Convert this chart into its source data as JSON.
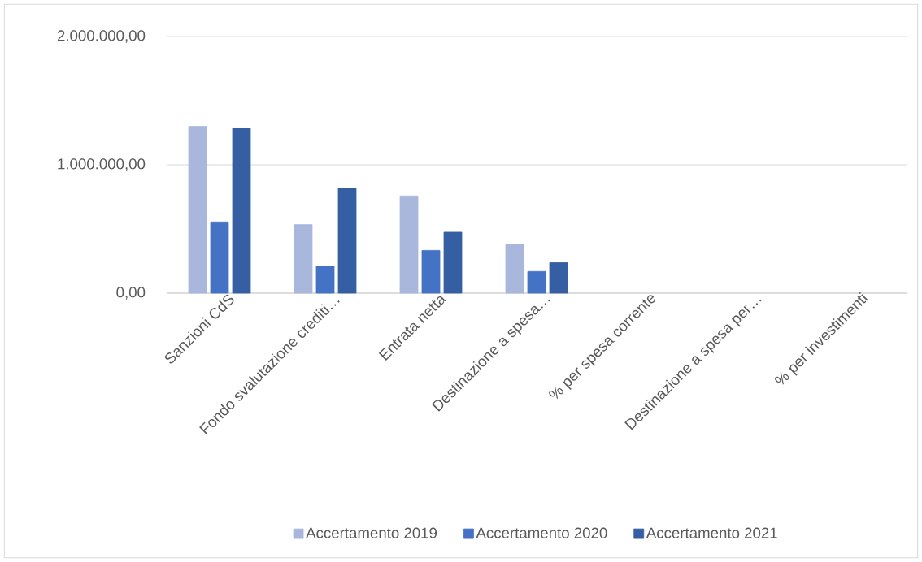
{
  "chart_data": {
    "type": "bar",
    "categories": [
      "Sanzioni CdS",
      "Fondo svalutazione crediti…",
      "Entrata netta",
      "Destinazione a spesa…",
      "% per spesa corrente",
      "Destinazione a spesa per…",
      "% per investimenti"
    ],
    "series": [
      {
        "name": "Accertamento 2019",
        "color": "#a9b7dc",
        "values": [
          1300000,
          534000,
          758000,
          381000,
          null,
          null,
          null
        ]
      },
      {
        "name": "Accertamento 2020",
        "color": "#4472c4",
        "values": [
          555000,
          212000,
          333000,
          169000,
          null,
          null,
          null
        ]
      },
      {
        "name": "Accertamento 2021",
        "color": "#365fa3",
        "values": [
          1288000,
          816000,
          475000,
          239000,
          null,
          null,
          null
        ]
      }
    ],
    "ylim": [
      0,
      2000000
    ],
    "yticks": [
      {
        "value": 0,
        "label": "0,00"
      },
      {
        "value": 1000000,
        "label": "1.000.000,00"
      },
      {
        "value": 2000000,
        "label": "2.000.000,00"
      }
    ],
    "grid": "y",
    "legend": "bottom"
  }
}
